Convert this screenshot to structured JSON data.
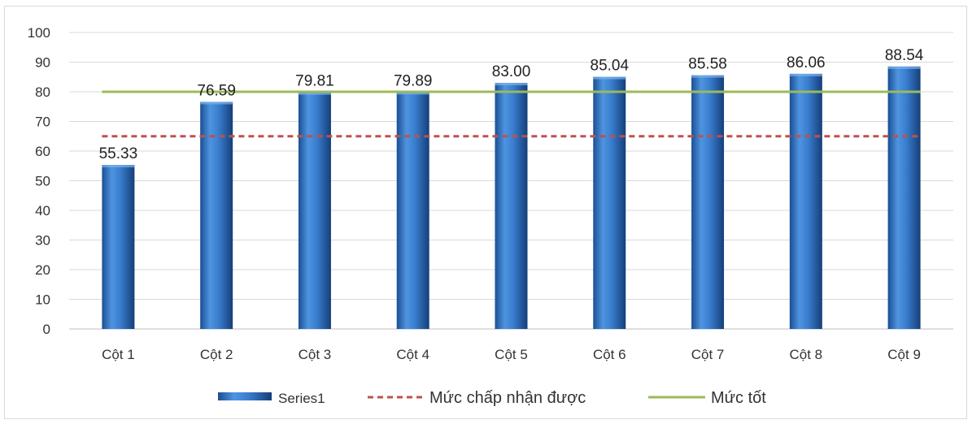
{
  "chart_data": {
    "type": "bar",
    "categories": [
      "Cột 1",
      "Cột 2",
      "Cột 3",
      "Cột 4",
      "Cột 5",
      "Cột 6",
      "Cột 7",
      "Cột 8",
      "Cột 9"
    ],
    "series": [
      {
        "name": "Series1",
        "values": [
          55.33,
          76.59,
          79.81,
          79.89,
          83.0,
          85.04,
          85.58,
          86.06,
          88.54
        ]
      }
    ],
    "data_labels": [
      "55.33",
      "76.59",
      "79.81",
      "79.89",
      "83.00",
      "85.04",
      "85.58",
      "86.06",
      "88.54"
    ],
    "reference_lines": [
      {
        "name": "Mức chấp nhận được",
        "value": 65,
        "style": "dashed",
        "color": "#c0504d"
      },
      {
        "name": "Mức tốt",
        "value": 80,
        "style": "solid",
        "color": "#9bbb59"
      }
    ],
    "ylim": [
      0,
      100
    ],
    "yticks": [
      "0",
      "10",
      "20",
      "30",
      "40",
      "50",
      "60",
      "70",
      "80",
      "90",
      "100"
    ],
    "grid": true,
    "legend_position": "bottom",
    "bar_color": "#2e75c6",
    "title": "",
    "xlabel": "",
    "ylabel": ""
  }
}
